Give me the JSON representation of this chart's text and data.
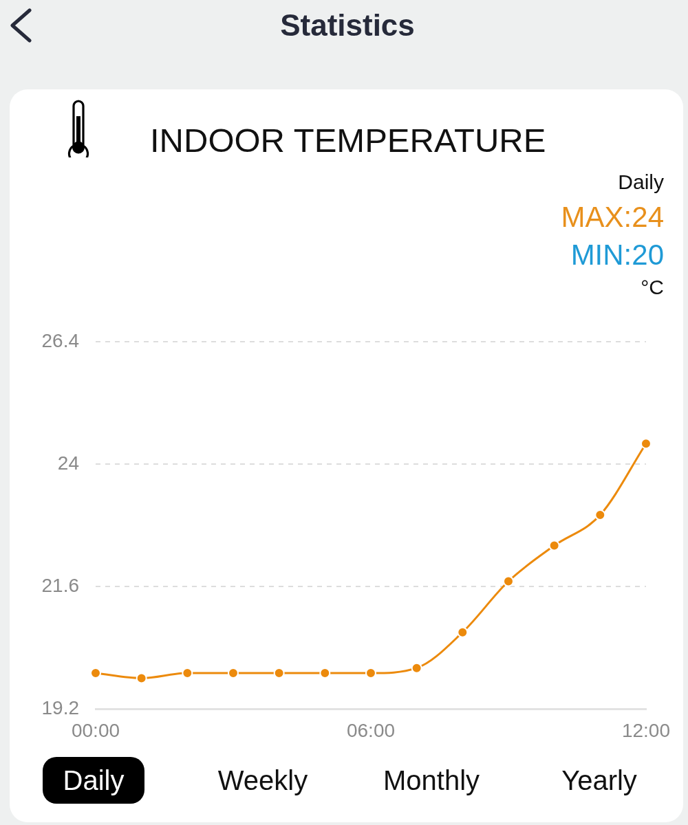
{
  "chart_data": {
    "type": "line",
    "title": "INDOOR TEMPERATURE",
    "x": [
      0,
      1,
      2,
      3,
      4,
      5,
      6,
      7,
      8,
      9,
      10,
      11,
      12
    ],
    "series": [
      {
        "color": "#ec8a0c",
        "values": [
          19.9,
          19.8,
          19.9,
          19.9,
          19.9,
          19.9,
          19.9,
          20.0,
          20.7,
          21.7,
          22.4,
          23.0,
          24.4
        ]
      }
    ],
    "xlim": [
      0,
      12
    ],
    "xticks": [
      {
        "value": 0,
        "label": "00:00"
      },
      {
        "value": 6,
        "label": "06:00"
      },
      {
        "value": 12,
        "label": "12:00"
      }
    ],
    "ylim": [
      19.2,
      26.4
    ],
    "yticks": [
      19.2,
      21.6,
      24,
      26.4
    ],
    "grid": "y",
    "marker": "circle",
    "line_style": "solid",
    "annotations": [
      "Statistics",
      "Daily",
      "MAX:24",
      "MIN:20",
      "°C",
      "Daily",
      "Weekly",
      "Monthly",
      "Yearly"
    ]
  }
}
